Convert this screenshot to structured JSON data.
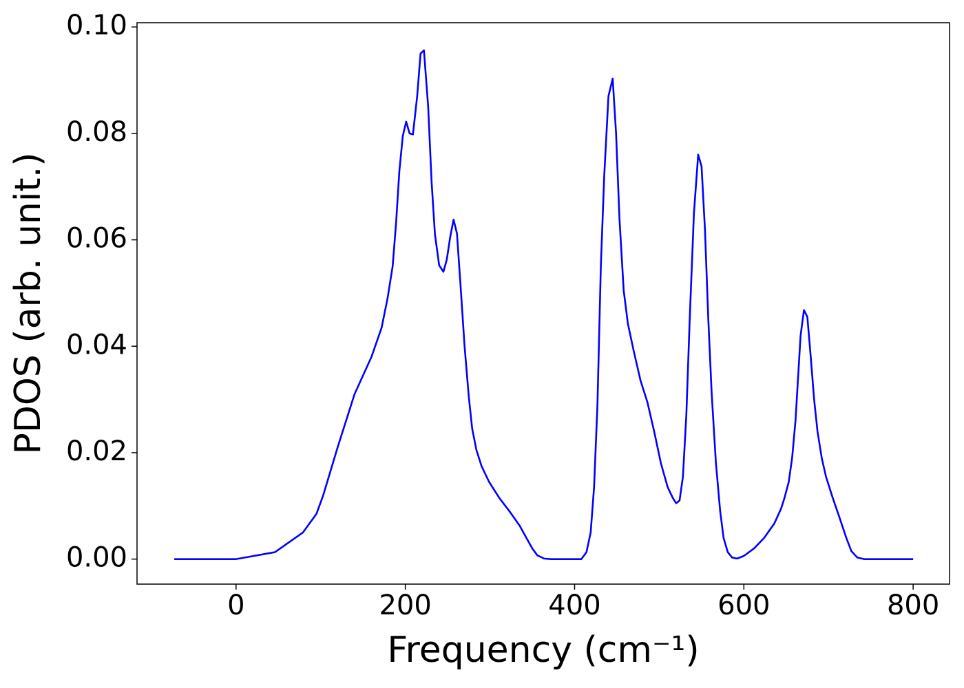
{
  "chart_data": {
    "type": "line",
    "xlabel": "Frequency (cm⁻¹)",
    "ylabel": "PDOS (arb. unit.)",
    "x": [
      -73,
      0,
      46,
      79,
      95,
      103,
      120,
      140,
      160,
      172,
      179,
      185,
      189,
      193,
      197,
      201,
      205,
      209,
      214,
      218,
      222,
      227,
      231,
      235,
      240,
      245,
      249,
      253,
      257,
      261,
      265,
      270,
      275,
      279,
      284,
      290,
      299,
      311,
      323,
      335,
      343,
      350,
      356,
      364,
      372,
      408,
      414,
      419,
      423,
      427,
      431,
      435,
      440,
      445,
      449,
      453,
      458,
      463,
      470,
      478,
      486,
      494,
      502,
      510,
      516,
      520,
      524,
      528,
      532,
      536,
      541,
      546,
      550,
      554,
      558,
      562,
      567,
      572,
      576,
      581,
      586,
      592,
      600,
      612,
      624,
      636,
      644,
      648,
      653,
      657,
      661,
      664,
      667,
      671,
      675,
      679,
      683,
      687,
      692,
      697,
      705,
      713,
      721,
      727,
      734,
      742,
      800
    ],
    "series": [
      {
        "color": "#0000ff",
        "values": [
          0,
          0,
          0.0013,
          0.005,
          0.0085,
          0.012,
          0.021,
          0.031,
          0.038,
          0.0435,
          0.049,
          0.055,
          0.063,
          0.073,
          0.0795,
          0.0822,
          0.08,
          0.0798,
          0.087,
          0.095,
          0.0956,
          0.085,
          0.071,
          0.061,
          0.0552,
          0.054,
          0.0563,
          0.0605,
          0.0638,
          0.0612,
          0.052,
          0.04,
          0.0305,
          0.0245,
          0.0205,
          0.0175,
          0.0145,
          0.0115,
          0.009,
          0.0063,
          0.004,
          0.002,
          0.0007,
          0.0001,
          0,
          0,
          0.0013,
          0.005,
          0.0135,
          0.029,
          0.055,
          0.072,
          0.087,
          0.0903,
          0.08,
          0.064,
          0.0505,
          0.0442,
          0.039,
          0.0335,
          0.0295,
          0.024,
          0.018,
          0.0135,
          0.0115,
          0.0105,
          0.011,
          0.0155,
          0.027,
          0.045,
          0.065,
          0.076,
          0.0738,
          0.062,
          0.045,
          0.031,
          0.018,
          0.009,
          0.004,
          0.0013,
          0.0003,
          0.0001,
          0.0006,
          0.002,
          0.004,
          0.0067,
          0.0095,
          0.0115,
          0.0145,
          0.019,
          0.026,
          0.034,
          0.042,
          0.0468,
          0.0455,
          0.038,
          0.03,
          0.024,
          0.019,
          0.0155,
          0.0115,
          0.0078,
          0.004,
          0.0015,
          0.0003,
          0,
          0
        ]
      }
    ],
    "xlim": [
      -117,
      843
    ],
    "ylim": [
      -0.0047,
      0.1008
    ],
    "xticks": [
      0,
      200,
      400,
      600,
      800
    ],
    "yticks": [
      {
        "value": 0,
        "label": "0.00"
      },
      {
        "value": 0.02,
        "label": "0.02"
      },
      {
        "value": 0.04,
        "label": "0.04"
      },
      {
        "value": 0.06,
        "label": "0.06"
      },
      {
        "value": 0.08,
        "label": "0.08"
      },
      {
        "value": 0.1,
        "label": "0.10"
      }
    ]
  }
}
